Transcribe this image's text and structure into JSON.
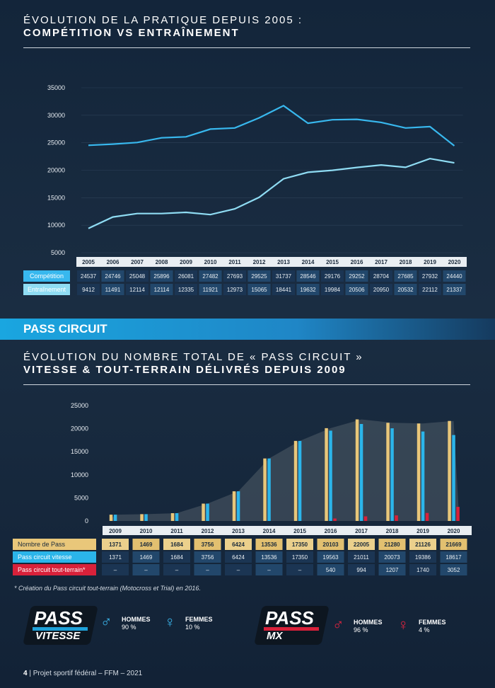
{
  "section1": {
    "title_line1": "ÉVOLUTION DE LA PRATIQUE DEPUIS 2005 :",
    "title_line2": "COMPÉTITION VS ENTRAÎNEMENT"
  },
  "band": {
    "label": "PASS CIRCUIT"
  },
  "section2": {
    "title_line1": "ÉVOLUTION DU NOMBRE TOTAL DE « PASS CIRCUIT »",
    "title_line2": "VITESSE & TOUT-TERRAIN DÉLIVRÉS DEPUIS 2009"
  },
  "chart_data": [
    {
      "type": "line",
      "x": [
        "2005",
        "2006",
        "2007",
        "2008",
        "2009",
        "2010",
        "2011",
        "2012",
        "2013",
        "2014",
        "2015",
        "2016",
        "2017",
        "2018",
        "2019",
        "2020"
      ],
      "ylim": [
        5000,
        35000
      ],
      "yticks": [
        5000,
        10000,
        15000,
        20000,
        25000,
        30000,
        35000
      ],
      "ytick_labels": [
        "5000",
        "10000",
        "15000",
        "20000",
        "25000",
        "30000",
        "35000"
      ],
      "series": [
        {
          "name": "Compétition",
          "color": "#38b8ee",
          "values": [
            24537,
            24746,
            25048,
            25896,
            26081,
            27482,
            27693,
            29525,
            31737,
            28546,
            29176,
            29252,
            28704,
            27685,
            27932,
            24440
          ],
          "labels": [
            "24537",
            "24746",
            "25048",
            "25896",
            "26081",
            "27482",
            "27693",
            "29525",
            "31737",
            "28546",
            "29176",
            "29252",
            "28704",
            "27685",
            "27932",
            "24440"
          ]
        },
        {
          "name": "Entraînement",
          "color": "#8fdcf3",
          "values": [
            9412,
            11491,
            12114,
            12114,
            12335,
            11921,
            12973,
            15065,
            18441,
            19632,
            19984,
            20506,
            20950,
            20532,
            22112,
            21337
          ],
          "labels": [
            "9412",
            "11491",
            "12114",
            "12114",
            "12335",
            "11921",
            "12973",
            "15065",
            "18441",
            "19632",
            "19984",
            "20506",
            "20950",
            "20532",
            "22112",
            "21337"
          ]
        }
      ]
    },
    {
      "type": "bar",
      "categories": [
        "2009",
        "2010",
        "2011",
        "2012",
        "2013",
        "2014",
        "2015",
        "2016",
        "2017",
        "2018",
        "2019",
        "2020"
      ],
      "ylim": [
        0,
        25000
      ],
      "yticks": [
        0,
        5000,
        10000,
        15000,
        20000,
        25000
      ],
      "ytick_labels": [
        "0",
        "5000",
        "10000",
        "15000",
        "20000",
        "25000"
      ],
      "series": [
        {
          "name": "Nombre de Pass",
          "color": "#e9c77a",
          "values": [
            1371,
            1469,
            1684,
            3756,
            6424,
            13536,
            17350,
            20103,
            22005,
            21280,
            21126,
            21669
          ],
          "labels": [
            "1371",
            "1469",
            "1684",
            "3756",
            "6424",
            "13536",
            "17350",
            "20103",
            "22005",
            "21280",
            "21126",
            "21669"
          ]
        },
        {
          "name": "Pass circuit vitesse",
          "color": "#2bb5ea",
          "values": [
            1371,
            1469,
            1684,
            3756,
            6424,
            13536,
            17350,
            19563,
            21011,
            20073,
            19386,
            18617
          ],
          "labels": [
            "1371",
            "1469",
            "1684",
            "3756",
            "6424",
            "13536",
            "17350",
            "19563",
            "21011",
            "20073",
            "19386",
            "18617"
          ]
        },
        {
          "name": "Pass circuit tout-terrain*",
          "color": "#d8213a",
          "values": [
            0,
            0,
            0,
            0,
            0,
            0,
            0,
            540,
            994,
            1207,
            1740,
            3052
          ],
          "labels": [
            "–",
            "–",
            "–",
            "–",
            "–",
            "–",
            "–",
            "540",
            "994",
            "1207",
            "1740",
            "3052"
          ]
        }
      ]
    }
  ],
  "note": "* Création du Pass circuit tout-terrain (Motocross et Trial) en 2016.",
  "logos": [
    {
      "pass": "PASS",
      "sub": "VITESSE",
      "stripe": "#1ea0d8"
    },
    {
      "pass": "PASS",
      "sub": "MX",
      "stripe": "#d8213a"
    }
  ],
  "genders": [
    {
      "symbol": "♂",
      "label": "HOMMES",
      "value": "90 %",
      "color": "#3bb6ec"
    },
    {
      "symbol": "♀",
      "label": "FEMMES",
      "value": "10 %",
      "color": "#3bb6ec"
    },
    {
      "symbol": "♂",
      "label": "HOMMES",
      "value": "96 %",
      "color": "#e0243f"
    },
    {
      "symbol": "♀",
      "label": "FEMMES",
      "value": "4 %",
      "color": "#e0243f"
    }
  ],
  "footer": {
    "page": "4",
    "text": "Projet sportif fédéral – FFM – 2021"
  }
}
